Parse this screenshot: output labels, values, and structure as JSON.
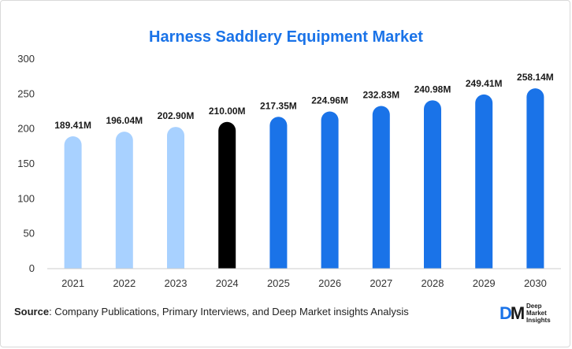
{
  "title": "Harness Saddlery Equipment Market",
  "source": {
    "label": "Source",
    "text": ": Company Publications, Primary Interviews, and Deep Market insights Analysis"
  },
  "logo": {
    "mark_d": "D",
    "mark_m": "M",
    "line1": "Deep",
    "line2": "Market",
    "line3": "Insights"
  },
  "chart_data": {
    "type": "bar",
    "categories": [
      "2021",
      "2022",
      "2023",
      "2024",
      "2025",
      "2026",
      "2027",
      "2028",
      "2029",
      "2030"
    ],
    "values": [
      189.41,
      196.04,
      202.9,
      210.0,
      217.35,
      224.96,
      232.83,
      240.98,
      249.41,
      258.14
    ],
    "data_labels": [
      "189.41M",
      "196.04M",
      "202.90M",
      "210.00M",
      "217.35M",
      "224.96M",
      "232.83M",
      "240.98M",
      "249.41M",
      "258.14M"
    ],
    "bar_colors": [
      "#a8d1ff",
      "#a8d1ff",
      "#a8d1ff",
      "#000000",
      "#1a73e8",
      "#1a73e8",
      "#1a73e8",
      "#1a73e8",
      "#1a73e8",
      "#1a73e8"
    ],
    "ylim": [
      0,
      300
    ],
    "yticks": [
      0,
      50,
      100,
      150,
      200,
      250,
      300
    ],
    "title": "Harness Saddlery Equipment Market",
    "xlabel": "",
    "ylabel": "",
    "grid": false,
    "legend": "none"
  }
}
